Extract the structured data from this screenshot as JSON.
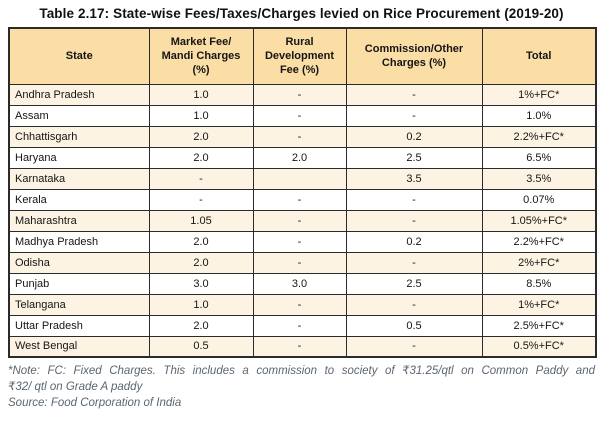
{
  "page": {
    "title": "Table 2.17: State-wise Fees/Taxes/Charges levied on Rice Procurement (2019-20)"
  },
  "table": {
    "columns": [
      "State",
      "Market Fee/ Mandi Charges (%)",
      "Rural Development Fee (%)",
      "Commission/Other Charges (%)",
      "Total"
    ],
    "rows": [
      [
        "Andhra Pradesh",
        "1.0",
        "-",
        "-",
        "1%+FC*"
      ],
      [
        "Assam",
        "1.0",
        "-",
        "-",
        "1.0%"
      ],
      [
        "Chhattisgarh",
        "2.0",
        "-",
        "0.2",
        "2.2%+FC*"
      ],
      [
        "Haryana",
        "2.0",
        "2.0",
        "2.5",
        "6.5%"
      ],
      [
        "Karnataka",
        "-",
        "",
        "3.5",
        "3.5%"
      ],
      [
        "Kerala",
        "-",
        "-",
        "-",
        "0.07%"
      ],
      [
        "Maharashtra",
        "1.05",
        "-",
        "-",
        "1.05%+FC*"
      ],
      [
        "Madhya Pradesh",
        "2.0",
        "-",
        "0.2",
        "2.2%+FC*"
      ],
      [
        "Odisha",
        "2.0",
        "-",
        "-",
        "2%+FC*"
      ],
      [
        "Punjab",
        "3.0",
        "3.0",
        "2.5",
        "8.5%"
      ],
      [
        "Telangana",
        "1.0",
        "-",
        "-",
        "1%+FC*"
      ],
      [
        "Uttar Pradesh",
        "2.0",
        "-",
        "0.5",
        "2.5%+FC*"
      ],
      [
        "West Bengal",
        "0.5",
        "-",
        "-",
        "0.5%+FC*"
      ]
    ]
  },
  "footnotes": {
    "note_line1": "*Note: FC: Fixed Charges. This includes a commission to society of ₹31.25/qtl on Common Paddy and",
    "note_line2": "₹32/ qtl on Grade A paddy",
    "source": "Source: Food Corporation of India"
  },
  "colors": {
    "header_bg": "#fbdda6",
    "row_alt_bg": "#fdf3e2",
    "row_bg": "#ffffff",
    "border": "#2b2b2b",
    "note_text": "#5b6670",
    "title_text": "#111111"
  }
}
